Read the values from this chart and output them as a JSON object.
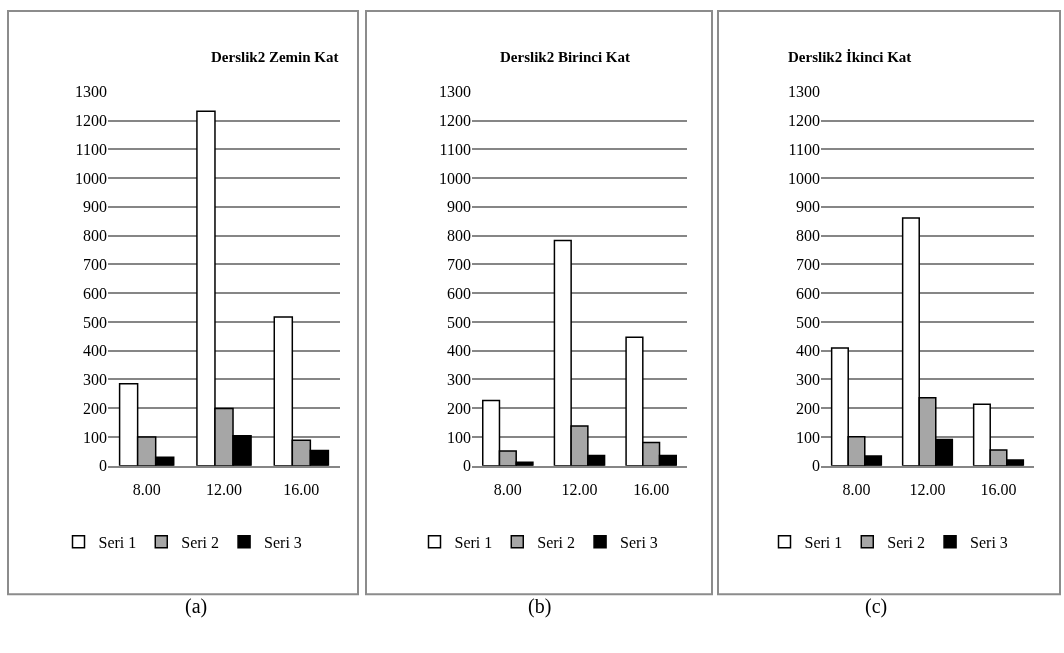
{
  "chart_data": [
    {
      "type": "bar",
      "title": "Derslik2 Zemin Kat",
      "categories": [
        "8.00",
        "12.00",
        "16.00"
      ],
      "series": [
        {
          "name": "Seri 1",
          "color": "#ffffff",
          "values": [
            285,
            1232,
            517
          ]
        },
        {
          "name": "Seri 2",
          "color": "#a6a6a6",
          "values": [
            100,
            199,
            89
          ]
        },
        {
          "name": "Seri 3",
          "color": "#000000",
          "values": [
            30,
            104,
            53
          ]
        }
      ],
      "ylim": [
        0,
        1300
      ],
      "yticks": [
        0,
        100,
        200,
        300,
        400,
        500,
        600,
        700,
        800,
        900,
        1000,
        1100,
        1200,
        1300
      ],
      "grid": "y",
      "legend": "bottom",
      "annotations": [
        "(a)"
      ]
    },
    {
      "type": "bar",
      "title": "Derslik2 Birinci Kat",
      "categories": [
        "8.00",
        "12.00",
        "16.00"
      ],
      "series": [
        {
          "name": "Seri 1",
          "color": "#ffffff",
          "values": [
            227,
            783,
            447
          ]
        },
        {
          "name": "Seri 2",
          "color": "#a6a6a6",
          "values": [
            51,
            138,
            81
          ]
        },
        {
          "name": "Seri 3",
          "color": "#000000",
          "values": [
            12,
            36,
            36
          ]
        }
      ],
      "ylim": [
        0,
        1300
      ],
      "yticks": [
        0,
        100,
        200,
        300,
        400,
        500,
        600,
        700,
        800,
        900,
        1000,
        1100,
        1200,
        1300
      ],
      "grid": "y",
      "legend": "bottom",
      "annotations": [
        "(b)"
      ]
    },
    {
      "type": "bar",
      "title": "Derslik2 İkinci Kat",
      "categories": [
        "8.00",
        "12.00",
        "16.00"
      ],
      "series": [
        {
          "name": "Seri 1",
          "color": "#ffffff",
          "values": [
            409,
            861,
            214
          ]
        },
        {
          "name": "Seri 2",
          "color": "#a6a6a6",
          "values": [
            101,
            236,
            55
          ]
        },
        {
          "name": "Seri 3",
          "color": "#000000",
          "values": [
            34,
            91,
            20
          ]
        }
      ],
      "ylim": [
        0,
        1300
      ],
      "yticks": [
        0,
        100,
        200,
        300,
        400,
        500,
        600,
        700,
        800,
        900,
        1000,
        1100,
        1200,
        1300
      ],
      "grid": "y",
      "legend": "bottom",
      "annotations": [
        "(c)"
      ]
    }
  ]
}
